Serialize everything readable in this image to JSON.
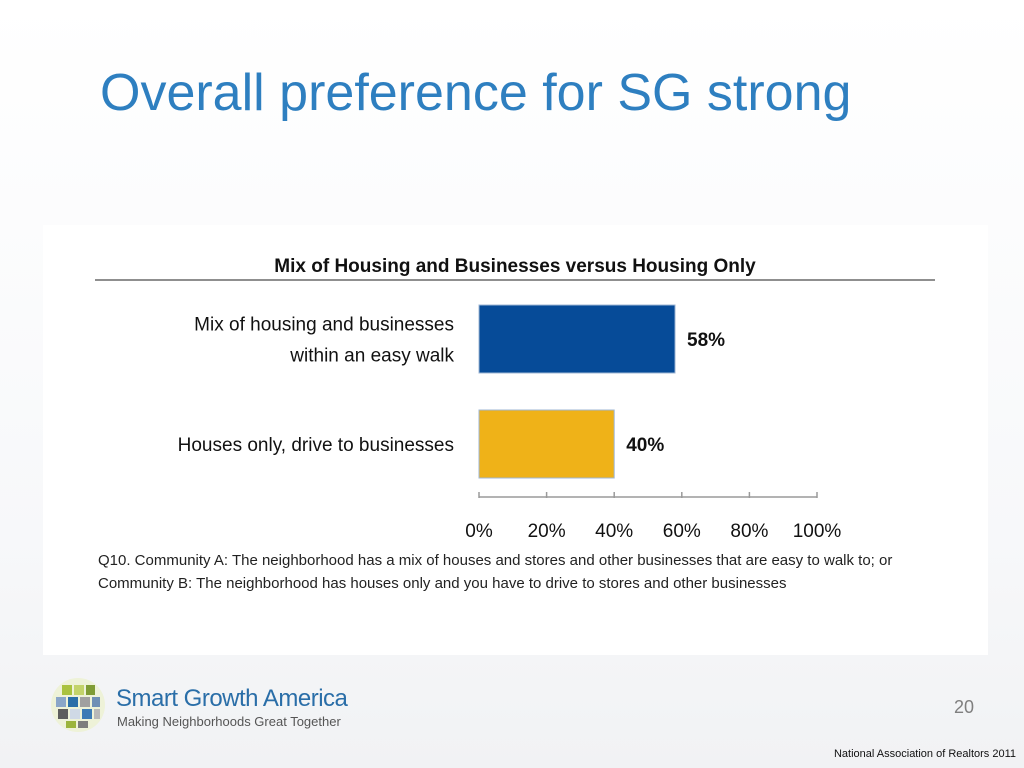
{
  "slide": {
    "title": "Overall preference for SG strong",
    "page_number": "20",
    "source": "National Association of Realtors 2011"
  },
  "chart_data": {
    "type": "bar",
    "orientation": "horizontal",
    "title": "Mix of Housing and Businesses versus Housing Only",
    "categories": [
      [
        "Mix of housing and businesses",
        "within an easy walk"
      ],
      [
        "Houses only, drive to businesses"
      ]
    ],
    "values": [
      58,
      40
    ],
    "value_labels": [
      "58%",
      "40%"
    ],
    "bar_colors": [
      "#064b98",
      "#efb218"
    ],
    "xlim": [
      0,
      100
    ],
    "x_ticks": [
      0,
      20,
      40,
      60,
      80,
      100
    ],
    "x_tick_labels": [
      "0%",
      "20%",
      "40%",
      "60%",
      "80%",
      "100%"
    ],
    "grid": false,
    "legend": "none",
    "footnote": "Q10. Community A: The neighborhood has a mix of houses and stores and other businesses that are easy to walk to; or Community B: The neighborhood has houses only and you have to drive to stores and other businesses"
  },
  "branding": {
    "logo_name": "Smart Growth America",
    "logo_tagline": "Making Neighborhoods Great Together",
    "logo_icon": "sga-grid-logo-icon",
    "colors": {
      "title": "#2e7fc0",
      "logo_text": "#2a6ea8"
    }
  }
}
